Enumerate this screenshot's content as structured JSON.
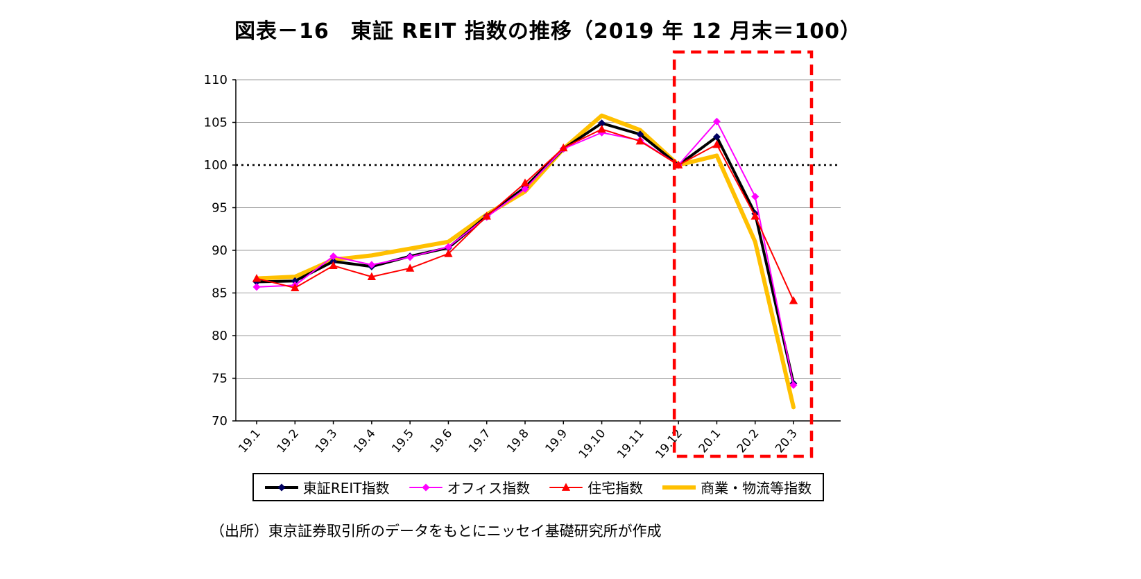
{
  "title": "図表－16　東証 REIT 指数の推移（2019 年 12 月末＝100）",
  "source": "（出所）東京証券取引所のデータをもとにニッセイ基礎研究所が作成",
  "chart_data": {
    "type": "line",
    "title": "図表－16　東証 REIT 指数の推移（2019 年 12 月末＝100）",
    "xlabel": "",
    "ylabel": "",
    "ylim": [
      70,
      110
    ],
    "yticks": [
      70,
      75,
      80,
      85,
      90,
      95,
      100,
      105,
      110
    ],
    "grid": true,
    "legend_position": "bottom",
    "categories": [
      "19.1",
      "19.2",
      "19.3",
      "19.4",
      "19.5",
      "19.6",
      "19.7",
      "19.8",
      "19.9",
      "19.10",
      "19.11",
      "19.12",
      "20.1",
      "20.2",
      "20.3"
    ],
    "reference_line": {
      "value": 100,
      "style": "dotted",
      "color": "#000000"
    },
    "highlight_box": {
      "from_category": "19.12",
      "to_category": "20.3",
      "color": "#ff0000",
      "style": "dashed"
    },
    "series": [
      {
        "name": "東証REIT指数",
        "color": "#000000",
        "marker": "diamond",
        "marker_color": "#000060",
        "line_width": 4,
        "values": [
          86.3,
          86.4,
          88.7,
          88.1,
          89.3,
          90.3,
          94.0,
          97.4,
          101.9,
          104.9,
          103.6,
          100.0,
          103.3,
          94.3,
          74.4
        ]
      },
      {
        "name": "オフィス指数",
        "color": "#ff00ff",
        "marker": "diamond",
        "marker_color": "#ff00ff",
        "line_width": 2,
        "values": [
          85.7,
          85.9,
          89.3,
          88.3,
          89.2,
          90.4,
          93.9,
          97.2,
          101.9,
          103.8,
          102.9,
          100.0,
          105.1,
          96.3,
          74.2
        ]
      },
      {
        "name": "住宅指数",
        "color": "#ff0000",
        "marker": "triangle",
        "marker_color": "#ff0000",
        "line_width": 2,
        "values": [
          86.7,
          85.6,
          88.2,
          86.9,
          87.9,
          89.6,
          94.0,
          97.9,
          102.0,
          104.2,
          102.8,
          100.0,
          102.4,
          94.0,
          84.1
        ]
      },
      {
        "name": "商業・物流等指数",
        "color": "#ffc000",
        "marker": "none",
        "marker_color": "#ffc000",
        "line_width": 6,
        "values": [
          86.7,
          86.9,
          88.9,
          89.4,
          90.2,
          91.0,
          94.2,
          96.9,
          101.9,
          105.8,
          104.1,
          100.0,
          101.1,
          91.0,
          71.6
        ]
      }
    ]
  }
}
